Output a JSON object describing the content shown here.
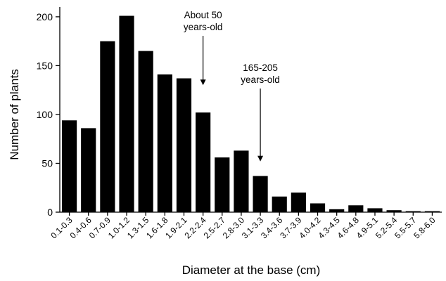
{
  "chart_data": {
    "type": "bar",
    "xlabel": "Diameter at the base (cm)",
    "ylabel": "Number of plants",
    "ylim": [
      0,
      210
    ],
    "yticks": [
      0,
      50,
      100,
      150,
      200
    ],
    "grid": false,
    "legend": "none",
    "bar_color": "#000000",
    "categories": [
      "0.1-0.3",
      "0.4-0.6",
      "0.7-0.9",
      "1.0-1.2",
      "1.3-1.5",
      "1.6-1.8",
      "1.9-2.1",
      "2.2-2.4",
      "2.5-2.7",
      "2.8-3.0",
      "3.1-3.3",
      "3.4-3.6",
      "3.7-3.9",
      "4.0-4.2",
      "4.3-4.5",
      "4.6-4.8",
      "4.9-5.1",
      "5.2-5.4",
      "5.5-5.7",
      "5.8-6.0"
    ],
    "values": [
      94,
      86,
      175,
      201,
      165,
      141,
      137,
      102,
      56,
      63,
      37,
      16,
      20,
      9,
      3,
      7,
      4,
      2,
      1,
      1
    ],
    "annotations": [
      {
        "lines": [
          "About 50",
          "years-old"
        ],
        "category": "2.2-2.4",
        "arrow_to": 130
      },
      {
        "lines": [
          "165-205",
          "years-old"
        ],
        "category": "3.1-3.3",
        "arrow_to": 52
      }
    ]
  }
}
